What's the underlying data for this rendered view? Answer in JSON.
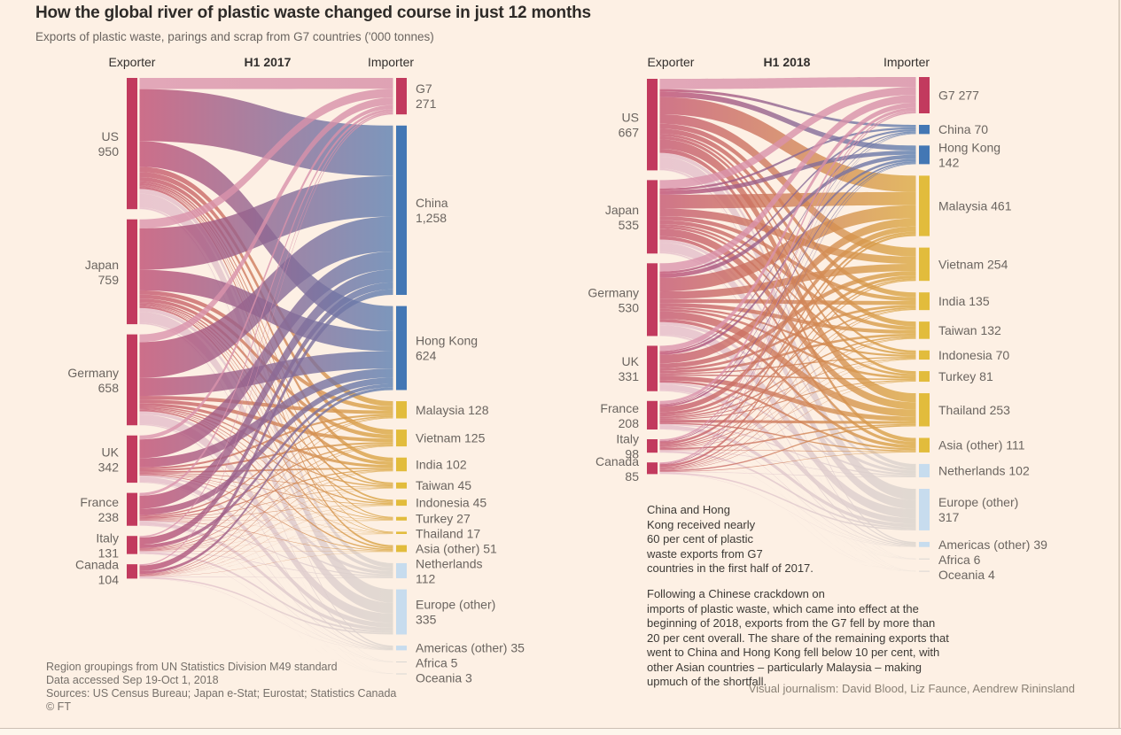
{
  "page": {
    "title": "How the global river of plastic waste changed course in just 12 months",
    "subtitle": "Exports of plastic waste, parings and scrap from G7 countries ('000 tonnes)"
  },
  "annotations": {
    "note_2017": "China and Hong\nKong received nearly\n60 per cent of plastic\nwaste exports from G7\ncountries in the first half of 2017.",
    "note_2018": "Following a Chinese crackdown on\nimports of plastic waste, which came into effect at the\nbeginning of 2018, exports from the G7 fell by more than\n20 per cent overall. The share of the remaining exports that\nwent to China and Hong Kong fell below 10 per cent, with\nother Asian countries – particularly Malaysia – making\nupmuch of the shortfall."
  },
  "footnotes": [
    "Region groupings from UN Statistics Division M49 standard",
    "Data accessed Sep 19-Oct 1, 2018",
    "Sources: US Census Bureau; Japan e-Stat; Eurostat; Statistics Canada",
    "© FT"
  ],
  "credit": "Visual journalism: David Blood, Liz Faunce, Aendrew Rininsland",
  "colors": {
    "background": "#FDF0E4",
    "footer_strip": "#FDF6EC",
    "divider": "#CCC0B4",
    "text_dark": "#33302E",
    "text_gray": "#6B6560",
    "node": {
      "exporter": "#C23A5E",
      "g7": "#C23A5E",
      "blue": "#4377B4",
      "yellow": "#E2BC3C",
      "paleblue": "#C7DCEE",
      "gray": "#D9D7D3"
    },
    "flow": {
      "g7": [
        "#DB95AD",
        "#D78FA8"
      ],
      "blue": [
        "#C04E73",
        "#5C80B2"
      ],
      "yellow": [
        "#C45672",
        "#DCAA42"
      ],
      "paleblue": [
        "#E5BCCA",
        "#DAD4CE"
      ],
      "gray": [
        "#E6C6D2",
        "#DFD9D3"
      ]
    },
    "flow_opacity": 0.8
  },
  "chart_data": [
    {
      "type": "sankey",
      "period": "H1 2017",
      "exporter_header": "Exporter",
      "importer_header": "Importer",
      "unit": "'000 tonnes",
      "links_estimate": "individual flow values not labelled in graphic; ribbons drawn proportional to node totals",
      "exporters": [
        {
          "name": "US",
          "value": 950,
          "label": [
            "US",
            "950"
          ]
        },
        {
          "name": "Japan",
          "value": 759,
          "label": [
            "Japan",
            "759"
          ]
        },
        {
          "name": "Germany",
          "value": 658,
          "label": [
            "Germany",
            "658"
          ]
        },
        {
          "name": "UK",
          "value": 342,
          "label": [
            "UK",
            "342"
          ]
        },
        {
          "name": "France",
          "value": 238,
          "label": [
            "France",
            "238"
          ]
        },
        {
          "name": "Italy",
          "value": 131,
          "label": [
            "Italy",
            "131"
          ]
        },
        {
          "name": "Canada",
          "value": 104,
          "label": [
            "Canada",
            "104"
          ]
        }
      ],
      "importers": [
        {
          "name": "G7",
          "value": 271,
          "group": "g7",
          "label": [
            "G7",
            "271"
          ]
        },
        {
          "name": "China",
          "value": 1258,
          "group": "blue",
          "label": [
            "China",
            "1,258"
          ]
        },
        {
          "name": "Hong Kong",
          "value": 624,
          "group": "blue",
          "label": [
            "Hong Kong",
            "624"
          ]
        },
        {
          "name": "Malaysia",
          "value": 128,
          "group": "yellow",
          "label": [
            "Malaysia 128"
          ]
        },
        {
          "name": "Vietnam",
          "value": 125,
          "group": "yellow",
          "label": [
            "Vietnam 125"
          ]
        },
        {
          "name": "India",
          "value": 102,
          "group": "yellow",
          "label": [
            "India 102"
          ]
        },
        {
          "name": "Taiwan",
          "value": 45,
          "group": "yellow",
          "label": [
            "Taiwan 45"
          ]
        },
        {
          "name": "Indonesia",
          "value": 45,
          "group": "yellow",
          "label": [
            "Indonesia 45"
          ]
        },
        {
          "name": "Turkey",
          "value": 27,
          "group": "yellow",
          "label": [
            "Turkey 27"
          ]
        },
        {
          "name": "Thailand",
          "value": 17,
          "group": "yellow",
          "label": [
            "Thailand 17"
          ]
        },
        {
          "name": "Asia (other)",
          "value": 51,
          "group": "yellow",
          "label": [
            "Asia (other) 51"
          ]
        },
        {
          "name": "Netherlands",
          "value": 112,
          "group": "paleblue",
          "label": [
            "Netherlands",
            "112"
          ]
        },
        {
          "name": "Europe (other)",
          "value": 335,
          "group": "paleblue",
          "label": [
            "Europe (other)",
            "335"
          ]
        },
        {
          "name": "Americas (other)",
          "value": 35,
          "group": "paleblue",
          "label": [
            "Americas (other) 35"
          ]
        },
        {
          "name": "Africa",
          "value": 5,
          "group": "gray",
          "label": [
            "Africa 5"
          ]
        },
        {
          "name": "Oceania",
          "value": 3,
          "group": "gray",
          "label": [
            "Oceania 3"
          ]
        }
      ]
    },
    {
      "type": "sankey",
      "period": "H1 2018",
      "exporter_header": "Exporter",
      "importer_header": "Importer",
      "unit": "'000 tonnes",
      "links_estimate": "individual flow values not labelled in graphic; ribbons drawn proportional to node totals",
      "exporters": [
        {
          "name": "US",
          "value": 667,
          "label": [
            "US",
            "667"
          ]
        },
        {
          "name": "Japan",
          "value": 535,
          "label": [
            "Japan",
            "535"
          ]
        },
        {
          "name": "Germany",
          "value": 530,
          "label": [
            "Germany",
            "530"
          ]
        },
        {
          "name": "UK",
          "value": 331,
          "label": [
            "UK",
            "331"
          ]
        },
        {
          "name": "France",
          "value": 208,
          "label": [
            "France",
            "208"
          ]
        },
        {
          "name": "Italy",
          "value": 98,
          "label": [
            "Italy",
            "98"
          ]
        },
        {
          "name": "Canada",
          "value": 85,
          "label": [
            "Canada",
            "85"
          ]
        }
      ],
      "importers": [
        {
          "name": "G7",
          "value": 277,
          "group": "g7",
          "label": [
            "G7 277"
          ]
        },
        {
          "name": "China",
          "value": 70,
          "group": "blue",
          "label": [
            "China 70"
          ]
        },
        {
          "name": "Hong Kong",
          "value": 142,
          "group": "blue",
          "label": [
            "Hong Kong",
            "142"
          ]
        },
        {
          "name": "Malaysia",
          "value": 461,
          "group": "yellow",
          "label": [
            "Malaysia 461"
          ]
        },
        {
          "name": "Vietnam",
          "value": 254,
          "group": "yellow",
          "label": [
            "Vietnam 254"
          ]
        },
        {
          "name": "India",
          "value": 135,
          "group": "yellow",
          "label": [
            "India 135"
          ]
        },
        {
          "name": "Taiwan",
          "value": 132,
          "group": "yellow",
          "label": [
            "Taiwan 132"
          ]
        },
        {
          "name": "Indonesia",
          "value": 70,
          "group": "yellow",
          "label": [
            "Indonesia 70"
          ]
        },
        {
          "name": "Turkey",
          "value": 81,
          "group": "yellow",
          "label": [
            "Turkey 81"
          ]
        },
        {
          "name": "Thailand",
          "value": 253,
          "group": "yellow",
          "label": [
            "Thailand 253"
          ]
        },
        {
          "name": "Asia (other)",
          "value": 111,
          "group": "yellow",
          "label": [
            "Asia (other) 111"
          ]
        },
        {
          "name": "Netherlands",
          "value": 102,
          "group": "paleblue",
          "label": [
            "Netherlands 102"
          ]
        },
        {
          "name": "Europe (other)",
          "value": 317,
          "group": "paleblue",
          "label": [
            "Europe (other)",
            "317"
          ]
        },
        {
          "name": "Americas (other)",
          "value": 39,
          "group": "paleblue",
          "label": [
            "Americas (other) 39"
          ]
        },
        {
          "name": "Africa",
          "value": 6,
          "group": "gray",
          "label": [
            "Africa 6"
          ]
        },
        {
          "name": "Oceania",
          "value": 4,
          "group": "gray",
          "label": [
            "Oceania 4"
          ]
        }
      ]
    }
  ]
}
